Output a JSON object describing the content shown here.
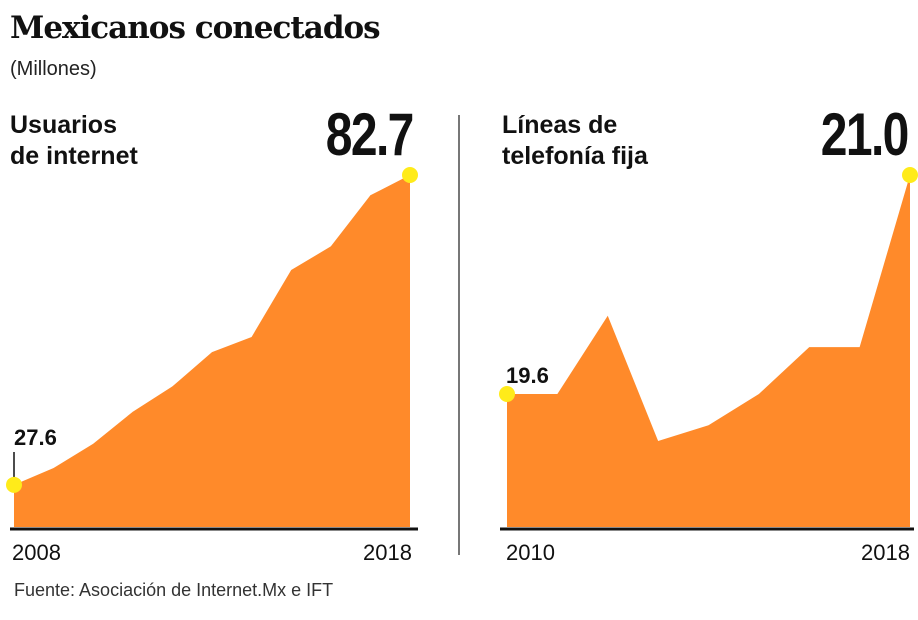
{
  "title": "Mexicanos conectados",
  "subtitle": "(Millones)",
  "source": "Fuente: Asociación de Internet.Mx e IFT",
  "colors": {
    "area": "#FF8A2A",
    "marker": "#FFEB1A",
    "axis": "#111111",
    "divider": "#777777"
  },
  "chart_data": [
    {
      "type": "area",
      "title": "Usuarios de internet",
      "title_lines": [
        "Usuarios",
        "de internet"
      ],
      "x": [
        2008,
        2009,
        2010,
        2011,
        2012,
        2013,
        2014,
        2015,
        2016,
        2017,
        2018
      ],
      "values": [
        27.6,
        30.6,
        34.9,
        40.6,
        45.1,
        51.2,
        53.9,
        65.8,
        70.0,
        79.1,
        82.7
      ],
      "ylim": [
        20.1,
        82.7
      ],
      "grid": false,
      "start_label": "27.6",
      "end_label": "82.7",
      "tick_labels": [
        "2008",
        "2018"
      ]
    },
    {
      "type": "area",
      "title": "Líneas de telefonía fija",
      "title_lines": [
        "Líneas de",
        "telefonía fija"
      ],
      "x": [
        2010,
        2011,
        2012,
        2013,
        2014,
        2015,
        2016,
        2017,
        2018
      ],
      "values": [
        19.6,
        19.6,
        20.1,
        19.3,
        19.4,
        19.6,
        19.9,
        19.9,
        21.0
      ],
      "ylim": [
        18.75,
        21.0
      ],
      "grid": false,
      "start_label": "19.6",
      "end_label": "21.0",
      "tick_labels": [
        "2010",
        "2018"
      ]
    }
  ]
}
